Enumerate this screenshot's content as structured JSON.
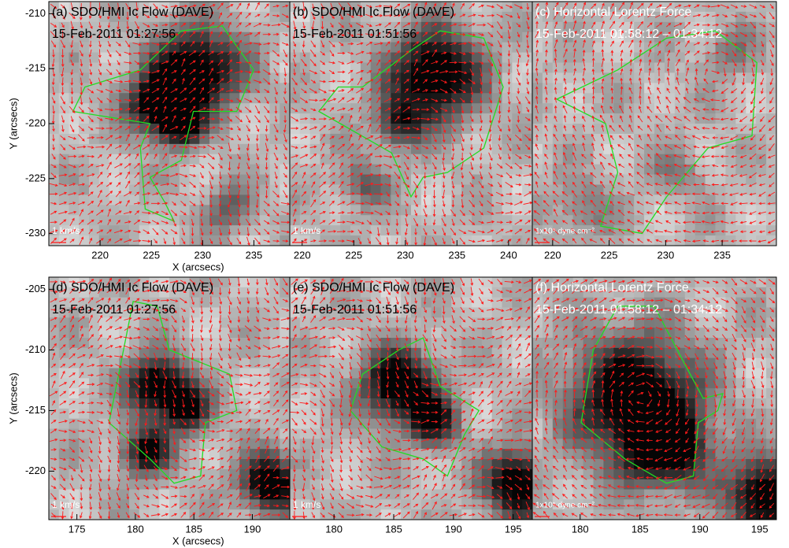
{
  "chart_data": [
    {
      "type": "image",
      "title": "(a) SDO/HMI Ic Flow  (DAVE)",
      "subtitle": "15-Feb-2011 01:27:56",
      "scale_label": "1 km/s",
      "xlim": [
        215,
        238.5
      ],
      "ylim": [
        -231.1,
        -208.9
      ],
      "xticks": [
        220,
        225,
        230,
        235
      ],
      "yticks": [
        -210,
        -215,
        -220,
        -225,
        -230
      ],
      "xlabel": "X (arcsecs)",
      "ylabel": "Y (arcsecs)"
    },
    {
      "type": "image",
      "title": "(b) SDO/HMI Ic Flow  (DAVE)",
      "subtitle": "15-Feb-2011 01:51:56",
      "scale_label": "1 km/s",
      "xlim": [
        218.8,
        242.3
      ],
      "ylim": [
        -231.1,
        -208.9
      ],
      "xticks": [
        220,
        225,
        230,
        235,
        240
      ]
    },
    {
      "type": "image",
      "title": "(c) Horizontal Lorentz Force",
      "subtitle": "15-Feb-2011 01:58:12 – 01:34:12",
      "scale_label": "1x10⁵ dyne cm⁻²",
      "xlim": [
        218.2,
        239.8
      ],
      "ylim": [
        -231.1,
        -208.9
      ],
      "xticks": [
        220,
        225,
        230,
        235
      ]
    },
    {
      "type": "image",
      "title": "(d) SDO/HMI Ic Flow  (DAVE)",
      "subtitle": "15-Feb-2011 01:27:56",
      "scale_label": "1 km/s",
      "xlim": [
        172.6,
        193.2
      ],
      "ylim": [
        -224,
        -204
      ],
      "xticks": [
        175,
        180,
        185,
        190
      ],
      "yticks": [
        -205,
        -210,
        -215,
        -220
      ],
      "xlabel": "X (arcsecs)",
      "ylabel": "Y (arcsecs)"
    },
    {
      "type": "image",
      "title": "(e) SDO/HMI Ic Flow  (DAVE)",
      "subtitle": "15-Feb-2011 01:51:56",
      "scale_label": "1 km/s",
      "xlim": [
        176.3,
        196.6
      ],
      "ylim": [
        -224,
        -204
      ],
      "xticks": [
        180,
        185,
        190,
        195
      ]
    },
    {
      "type": "image",
      "title": "(f) Horizontal Lorentz Force",
      "subtitle": "15-Feb-2011 01:58:12 – 01:34:12",
      "scale_label": "1x10⁵ dyne cm⁻²",
      "xlim": [
        176,
        196.4
      ],
      "ylim": [
        -224,
        -204
      ],
      "xticks": [
        180,
        185,
        190,
        195
      ]
    }
  ]
}
